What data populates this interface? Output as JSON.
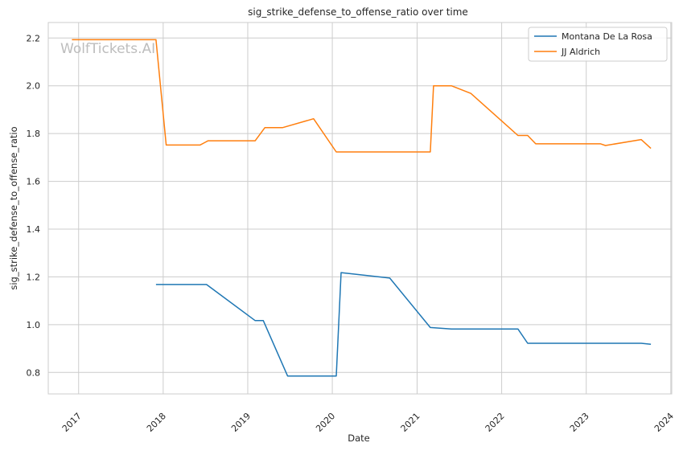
{
  "chart_data": {
    "type": "line",
    "title": "sig_strike_defense_to_offense_ratio over time",
    "xlabel": "Date",
    "ylabel": "sig_strike_defense_to_offense_ratio",
    "watermark": "WolfTickets.AI",
    "x_tick_labels": [
      "2017",
      "2018",
      "2019",
      "2020",
      "2021",
      "2022",
      "2023",
      "2024"
    ],
    "y_tick_labels": [
      "0.8",
      "1.0",
      "1.2",
      "1.4",
      "1.6",
      "1.8",
      "2.0",
      "2.2"
    ],
    "y_ticks": [
      0.8,
      1.0,
      1.2,
      1.4,
      1.6,
      1.8,
      2.0,
      2.2
    ],
    "xlim": [
      "2016-08-23",
      "2024-01-05"
    ],
    "ylim": [
      0.71,
      2.265
    ],
    "grid": true,
    "legend_position": "top-right",
    "series": [
      {
        "name": "Montana De La Rosa",
        "color": "#1f77b4",
        "points": [
          [
            "2017-12-01",
            1.168
          ],
          [
            "2018-07-07",
            1.168
          ],
          [
            "2019-02-02",
            1.017
          ],
          [
            "2019-03-09",
            1.017
          ],
          [
            "2019-06-22",
            0.785
          ],
          [
            "2020-01-18",
            0.785
          ],
          [
            "2020-02-08",
            1.218
          ],
          [
            "2020-09-05",
            1.195
          ],
          [
            "2021-02-27",
            0.988
          ],
          [
            "2021-05-29",
            0.982
          ],
          [
            "2022-03-12",
            0.982
          ],
          [
            "2022-04-23",
            0.922
          ],
          [
            "2023-08-26",
            0.922
          ],
          [
            "2023-10-07",
            0.918
          ]
        ]
      },
      {
        "name": "JJ Aldrich",
        "color": "#ff7f0e",
        "points": [
          [
            "2016-12-03",
            2.193
          ],
          [
            "2017-12-01",
            2.193
          ],
          [
            "2018-01-14",
            1.752
          ],
          [
            "2018-06-09",
            1.752
          ],
          [
            "2018-07-14",
            1.77
          ],
          [
            "2019-02-02",
            1.77
          ],
          [
            "2019-03-16",
            1.825
          ],
          [
            "2019-06-01",
            1.825
          ],
          [
            "2019-10-12",
            1.862
          ],
          [
            "2020-01-18",
            1.723
          ],
          [
            "2021-02-27",
            1.723
          ],
          [
            "2021-03-13",
            2.0
          ],
          [
            "2021-05-29",
            2.0
          ],
          [
            "2021-08-21",
            1.968
          ],
          [
            "2022-03-12",
            1.792
          ],
          [
            "2022-04-23",
            1.792
          ],
          [
            "2022-05-28",
            1.757
          ],
          [
            "2023-03-04",
            1.757
          ],
          [
            "2023-03-25",
            1.75
          ],
          [
            "2023-08-26",
            1.775
          ],
          [
            "2023-10-07",
            1.738
          ]
        ]
      }
    ]
  }
}
